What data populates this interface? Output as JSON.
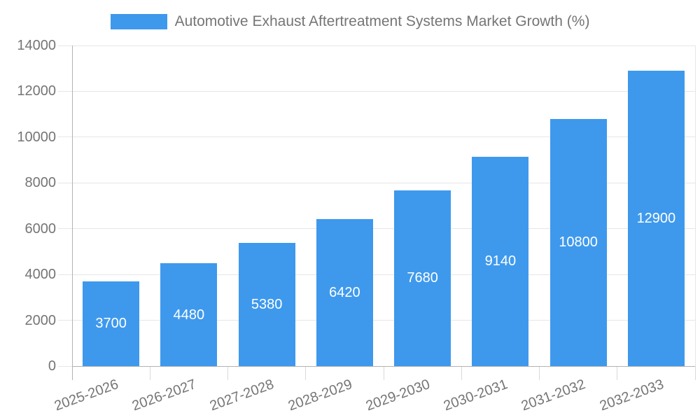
{
  "legend": {
    "label": "Automotive Exhaust Aftertreatment Systems Market Growth (%)"
  },
  "chart_data": {
    "type": "bar",
    "title": "Automotive Exhaust Aftertreatment Systems Market Growth (%)",
    "categories": [
      "2025-2026",
      "2026-2027",
      "2027-2028",
      "2028-2029",
      "2029-2030",
      "2030-2031",
      "2031-2032",
      "2032-2033"
    ],
    "values": [
      3700,
      4480,
      5380,
      6420,
      7680,
      9140,
      10800,
      12900
    ],
    "bar_labels": [
      "3700",
      "4480",
      "5380",
      "6420",
      "7680",
      "9140",
      "10800",
      "12900"
    ],
    "ytick_labels": [
      "0",
      "2000",
      "4000",
      "6000",
      "8000",
      "10000",
      "12000",
      "14000"
    ],
    "yticks": [
      0,
      2000,
      4000,
      6000,
      8000,
      10000,
      12000,
      14000
    ],
    "xlabel": "",
    "ylabel": "",
    "ylim": [
      0,
      14000
    ],
    "grid": true,
    "legend_position": "top",
    "colors": {
      "bar": "#3e99ed",
      "bar_label": "#ffffff",
      "axis_text": "#757575",
      "grid": "#e6e6e6",
      "tick": "#d9d9d9",
      "axis_line": "#b3b3b3",
      "background": "#ffffff"
    }
  }
}
